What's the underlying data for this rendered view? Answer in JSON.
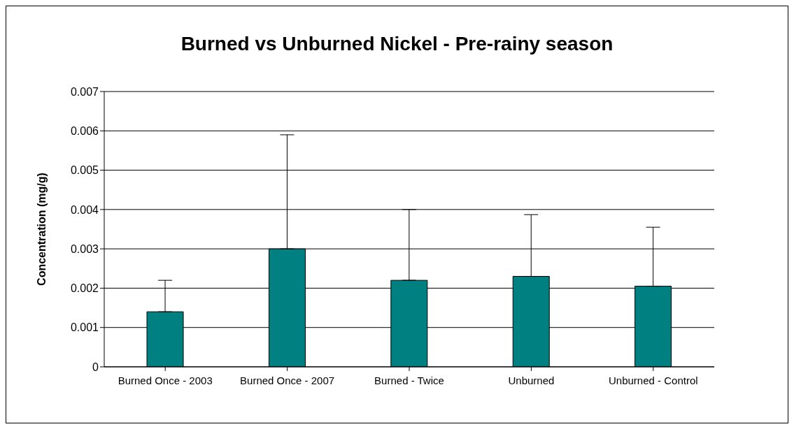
{
  "chart_data": {
    "type": "bar",
    "title": "Burned vs Unburned Nickel - Pre-rainy season",
    "ylabel": "Concentration (mg/g)",
    "categories": [
      "Burned Once - 2003",
      "Burned Once - 2007",
      "Burned - Twice",
      "Unburned",
      "Unburned - Control"
    ],
    "values": [
      0.0014,
      0.003,
      0.0022,
      0.0023,
      0.00205
    ],
    "errors": [
      [
        0.0014,
        0.0022
      ],
      [
        0.003,
        0.0059
      ],
      [
        0.0022,
        0.004
      ],
      [
        0.0023,
        0.00387
      ],
      [
        0.00205,
        0.00355
      ]
    ],
    "color": "#008080",
    "ylim": [
      0,
      0.007
    ],
    "yticks": [
      0,
      0.001,
      0.002,
      0.003,
      0.004,
      0.005,
      0.006,
      0.007
    ],
    "grid": "y",
    "legend": false
  }
}
